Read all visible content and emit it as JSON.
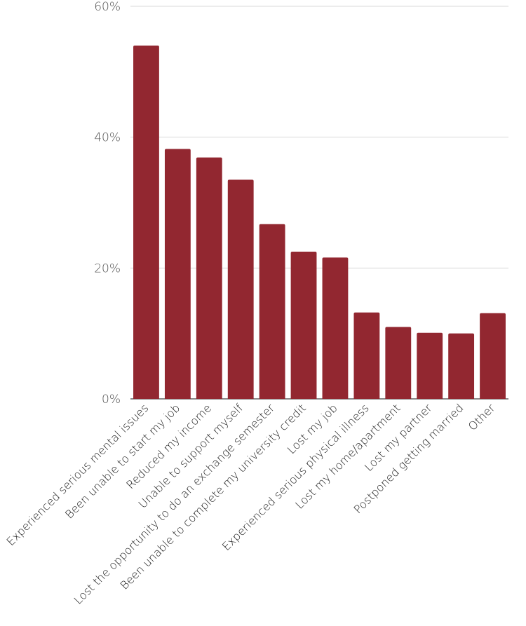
{
  "chart_data": {
    "type": "bar",
    "title": "",
    "xlabel": "",
    "ylabel": "",
    "ylim": [
      0,
      60
    ],
    "yticks": [
      0,
      20,
      40,
      60
    ],
    "ytick_labels": [
      "0%",
      "20%",
      "40%",
      "60%"
    ],
    "grid": true,
    "legend": "none",
    "bar_color": "#922730",
    "categories": [
      "Experienced serious mental issues",
      "Been unable to start my job",
      "Reduced my income",
      "Unable to support myself",
      "Lost the opportunity to do an exchange semester",
      "Been unable to complete my university credit",
      "Lost my job",
      "Experienced serious physical illness",
      "Lost my home/apartment",
      "Lost my partner",
      "Postponed getting married",
      "Other"
    ],
    "values": [
      54,
      38.2,
      36.9,
      33.5,
      26.7,
      22.5,
      21.6,
      13.2,
      11,
      10.1,
      10,
      13.1
    ]
  }
}
